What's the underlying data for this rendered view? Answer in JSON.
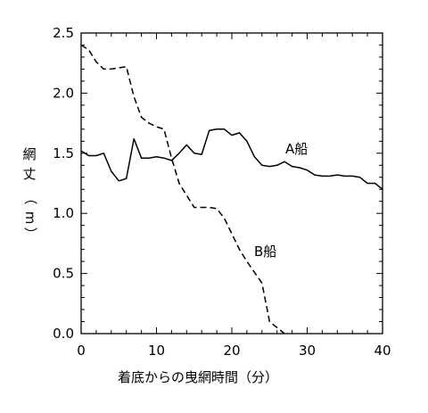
{
  "chart_data": {
    "type": "line",
    "xlabel": "着底からの曳網時間（分）",
    "ylabel": [
      "網",
      "丈",
      "（",
      "m",
      "）"
    ],
    "xlim": [
      0,
      40
    ],
    "ylim": [
      0,
      2.5
    ],
    "x_ticks": [
      0,
      10,
      20,
      30,
      40
    ],
    "y_ticks": [
      "0.0",
      "0.5",
      "1.0",
      "1.5",
      "2.0",
      "2.5"
    ],
    "grid": false,
    "series": [
      {
        "name": "A船",
        "style": "solid",
        "color": "#000000",
        "x": [
          0,
          1,
          2,
          3,
          4,
          5,
          6,
          7,
          8,
          9,
          10,
          11,
          12,
          13,
          14,
          15,
          16,
          17,
          18,
          19,
          20,
          21,
          22,
          23,
          24,
          25,
          26,
          27,
          28,
          29,
          30,
          31,
          32,
          33,
          34,
          35,
          36,
          37,
          38,
          39,
          40
        ],
        "values": [
          1.52,
          1.48,
          1.48,
          1.5,
          1.35,
          1.27,
          1.29,
          1.62,
          1.46,
          1.46,
          1.47,
          1.46,
          1.44,
          1.5,
          1.57,
          1.5,
          1.49,
          1.69,
          1.7,
          1.7,
          1.65,
          1.67,
          1.6,
          1.47,
          1.4,
          1.39,
          1.4,
          1.43,
          1.39,
          1.38,
          1.36,
          1.32,
          1.31,
          1.31,
          1.32,
          1.31,
          1.31,
          1.3,
          1.25,
          1.25,
          1.2
        ]
      },
      {
        "name": "B船",
        "style": "dashed",
        "color": "#000000",
        "x": [
          0,
          1,
          2,
          3,
          4,
          5,
          6,
          7,
          8,
          9,
          10,
          11,
          12,
          13,
          14,
          15,
          16,
          17,
          18,
          19,
          20,
          21,
          22,
          23,
          24,
          25,
          26,
          27
        ],
        "values": [
          2.4,
          2.36,
          2.26,
          2.2,
          2.2,
          2.21,
          2.22,
          1.97,
          1.8,
          1.75,
          1.72,
          1.7,
          1.46,
          1.25,
          1.15,
          1.05,
          1.05,
          1.05,
          1.04,
          0.96,
          0.83,
          0.7,
          0.6,
          0.51,
          0.42,
          0.1,
          0.05,
          0.0
        ]
      }
    ]
  }
}
